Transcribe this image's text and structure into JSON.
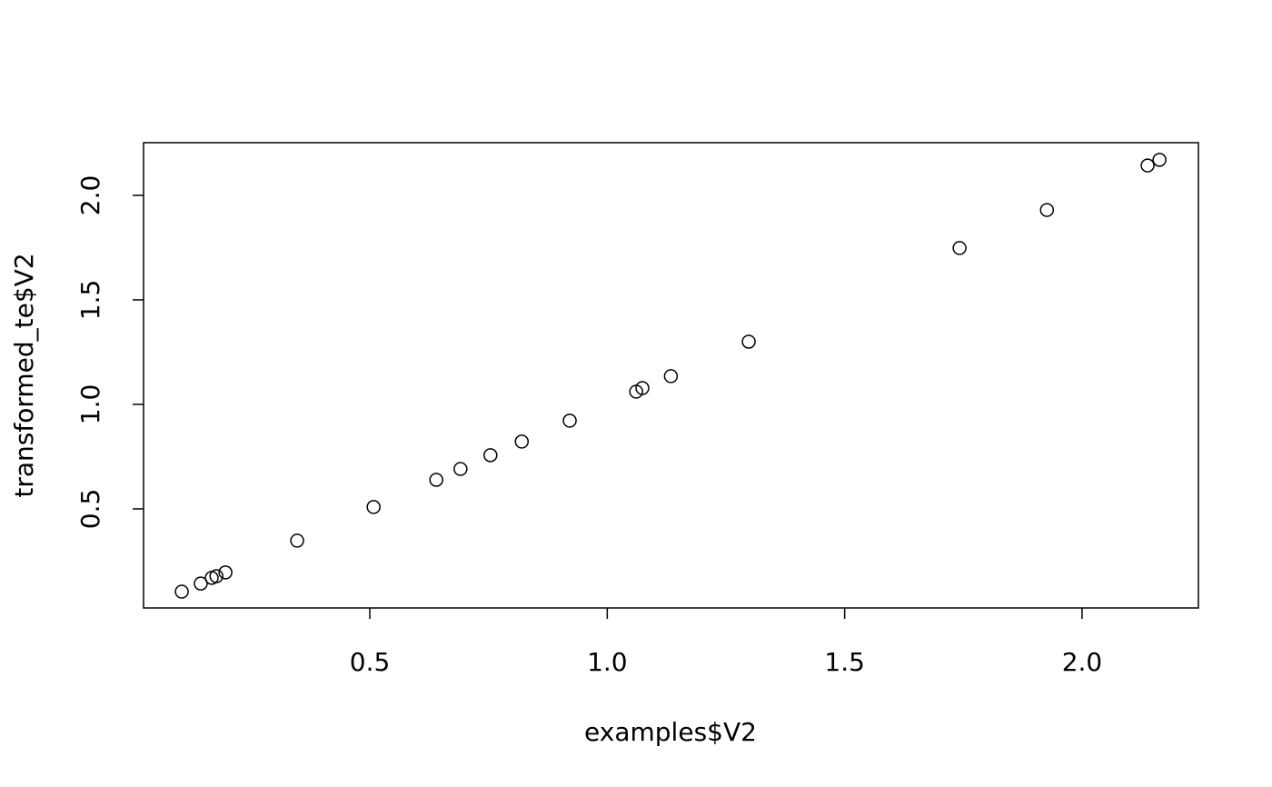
{
  "chart_data": {
    "type": "scatter",
    "xlabel": "examples$V2",
    "ylabel": "transformed_te$V2",
    "x": [
      0.104,
      0.144,
      0.167,
      0.177,
      0.196,
      0.347,
      0.508,
      0.64,
      0.691,
      0.754,
      0.82,
      0.921,
      1.061,
      1.074,
      1.134,
      1.298,
      1.742,
      1.926,
      2.138,
      2.163
    ],
    "values": [
      0.104,
      0.143,
      0.17,
      0.178,
      0.196,
      0.348,
      0.509,
      0.639,
      0.691,
      0.757,
      0.822,
      0.922,
      1.061,
      1.078,
      1.135,
      1.3,
      1.748,
      1.93,
      2.143,
      2.17
    ],
    "color": "#000000",
    "xlim": [
      0.0235,
      2.245
    ],
    "ylim": [
      0.026,
      2.252
    ],
    "xticks": [
      0.5,
      {
        "value": 1,
        "label": "1.0"
      },
      1.5,
      {
        "value": 2,
        "label": "2.0"
      }
    ],
    "yticks": [
      0.5,
      {
        "value": 1,
        "label": "1.0"
      },
      1.5,
      {
        "value": 2,
        "label": "2.0"
      }
    ],
    "grid": false
  }
}
